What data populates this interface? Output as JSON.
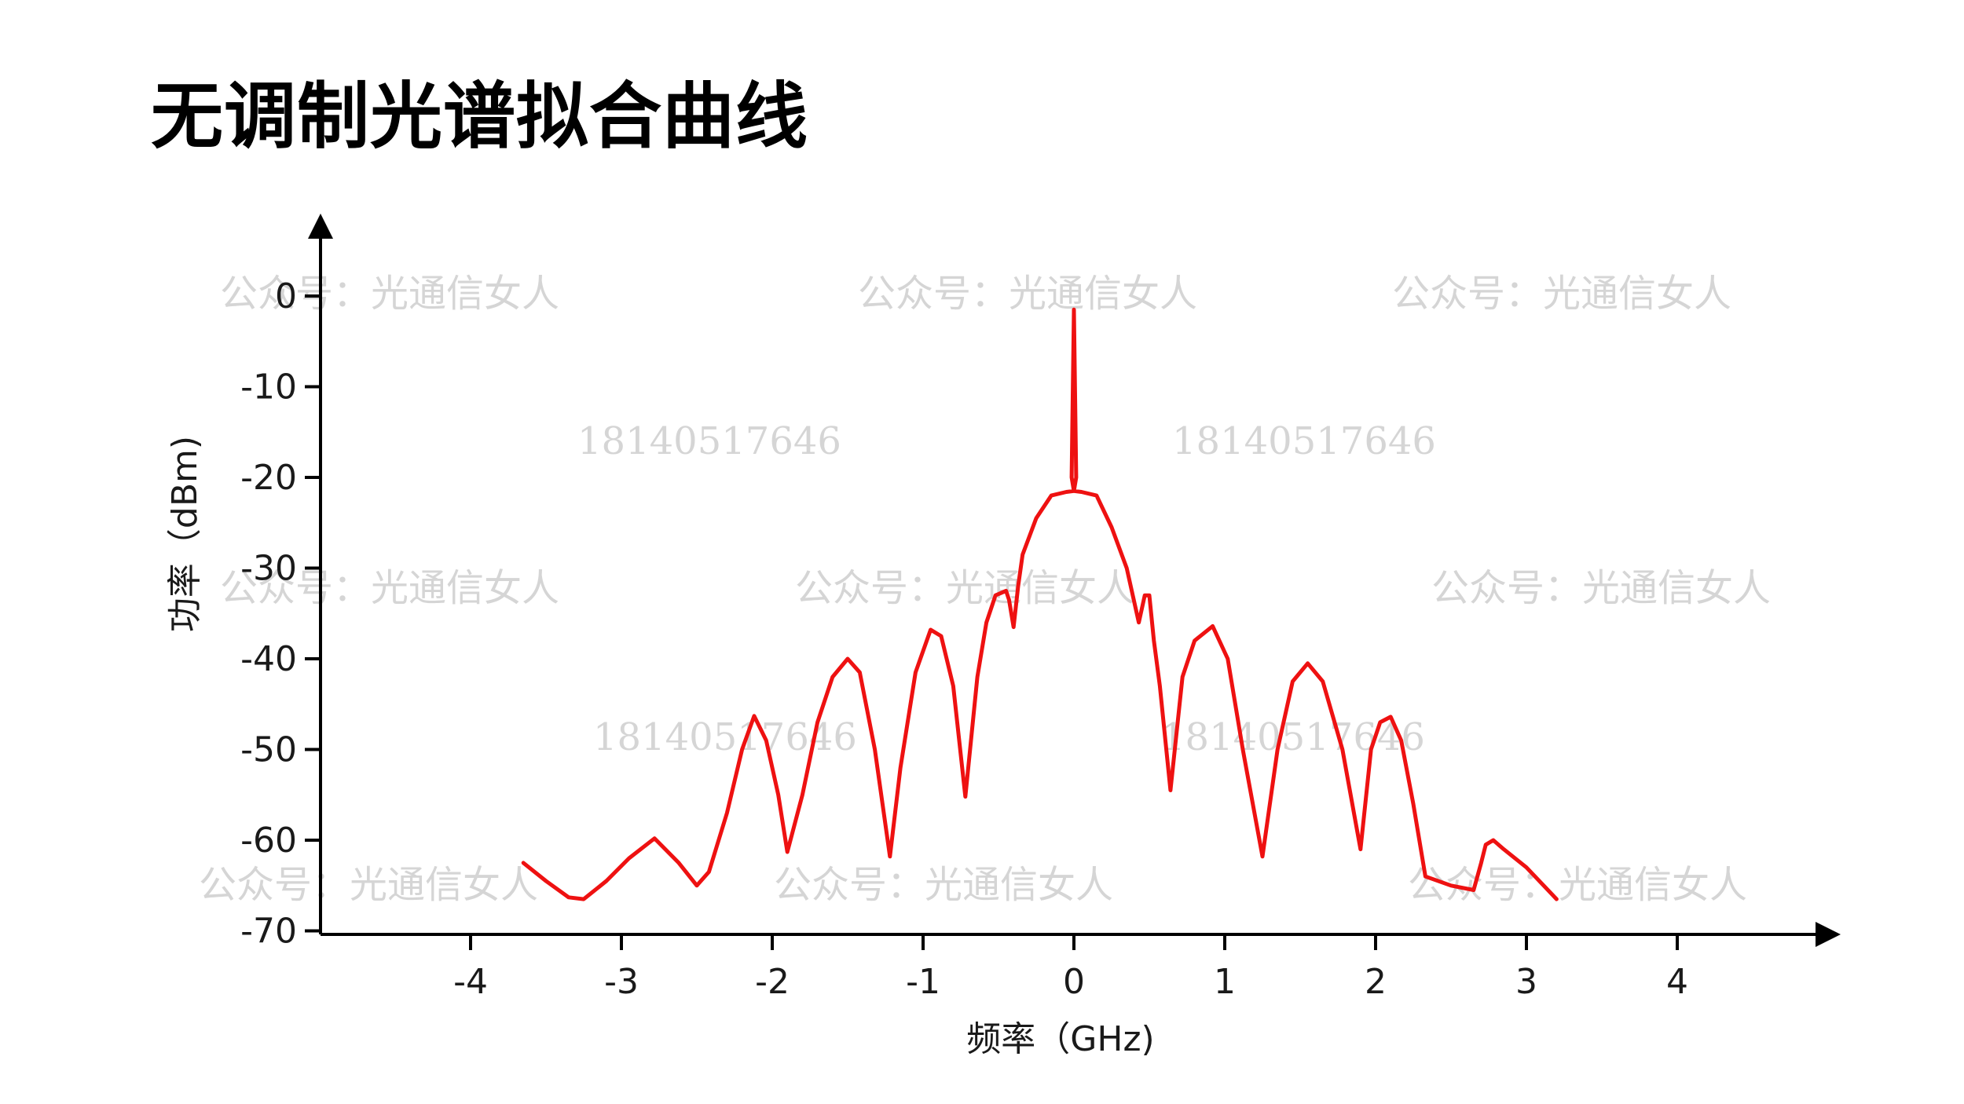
{
  "page": {
    "title": "无调制光谱拟合曲线"
  },
  "watermarks": [
    "公众号：光通信女人",
    "18140517646"
  ],
  "chart_data": {
    "type": "line",
    "xlabel": "频率（GHz)",
    "ylabel": "功率（dBm)",
    "xlim": [
      -4.9,
      4.9
    ],
    "ylim": [
      -70,
      8
    ],
    "xticks": [
      "-4",
      "-3",
      "-2",
      "-1",
      "0",
      "1",
      "2",
      "3",
      "4"
    ],
    "yticks": [
      "0",
      "-10",
      "-20",
      "-30",
      "-40",
      "-50",
      "-60",
      "-70"
    ],
    "grid": false,
    "line_color": "#ee1111",
    "series": [
      {
        "x": [
          -3.65,
          -3.5,
          -3.35,
          -3.25,
          -3.1,
          -2.95,
          -2.78,
          -2.62,
          -2.5,
          -2.42,
          -2.3,
          -2.2,
          -2.12,
          -2.04,
          -1.96,
          -1.9,
          -1.8,
          -1.7,
          -1.6,
          -1.5,
          -1.42,
          -1.32,
          -1.22,
          -1.15,
          -1.05,
          -0.95,
          -0.88,
          -0.8,
          -0.72,
          -0.64,
          -0.58,
          -0.52,
          -0.45,
          -0.43,
          -0.4,
          -0.37,
          -0.34,
          -0.25,
          -0.15,
          -0.05,
          0.0,
          -0.015,
          0.0,
          0.015,
          0.0,
          0.05,
          0.15,
          0.25,
          0.35,
          0.43,
          0.47,
          0.5,
          0.53,
          0.57,
          0.64,
          0.72,
          0.8,
          0.92,
          1.02,
          1.12,
          1.25,
          1.35,
          1.45,
          1.55,
          1.65,
          1.78,
          1.9,
          1.97,
          2.03,
          2.1,
          2.17,
          2.25,
          2.33,
          2.5,
          2.65,
          2.7,
          2.73,
          2.78,
          2.85,
          3.0,
          3.2
        ],
        "y": [
          -62.5,
          -64.5,
          -66.3,
          -66.5,
          -64.5,
          -62.0,
          -59.8,
          -62.5,
          -65.0,
          -63.5,
          -57.0,
          -50.0,
          -46.3,
          -49.0,
          -55.0,
          -61.3,
          -55.0,
          -47.0,
          -42.0,
          -40.0,
          -41.5,
          -50.0,
          -61.8,
          -52.0,
          -41.5,
          -36.8,
          -37.5,
          -43.0,
          -55.2,
          -42.0,
          -36.0,
          -33.0,
          -32.5,
          -33.5,
          -36.5,
          -32.0,
          -28.5,
          -24.5,
          -22.0,
          -21.6,
          -21.5,
          -20.0,
          -1.5,
          -20.0,
          -21.5,
          -21.6,
          -22.0,
          -25.5,
          -30.0,
          -36.0,
          -33.0,
          -33.0,
          -38.0,
          -43.0,
          -54.5,
          -42.0,
          -38.0,
          -36.4,
          -40.0,
          -50.0,
          -61.8,
          -50.0,
          -42.5,
          -40.5,
          -42.5,
          -50.0,
          -61.0,
          -50.0,
          -47.0,
          -46.4,
          -49.0,
          -56.0,
          -64.0,
          -65.0,
          -65.5,
          -62.5,
          -60.5,
          -60.0,
          -61.0,
          -63.0,
          -66.5
        ]
      }
    ]
  }
}
